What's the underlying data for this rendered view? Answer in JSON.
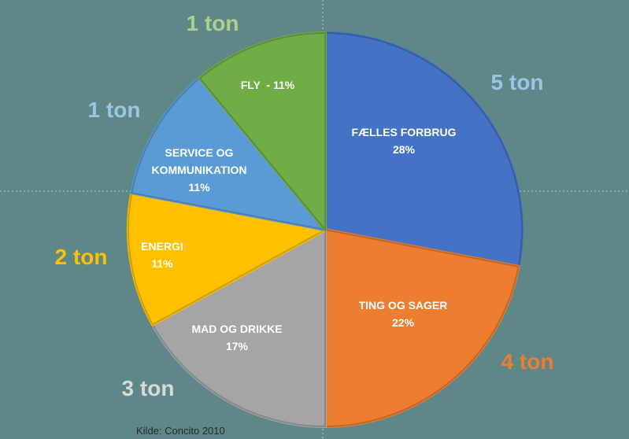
{
  "chart_data": {
    "type": "pie",
    "categories": [
      "FÆLLES FORBRUG",
      "TING OG SAGER",
      "MAD OG DRIKKE",
      "ENERGI",
      "SERVICE OG KOMMUNIKATION",
      null
    ],
    "values": [
      28,
      22,
      17,
      11,
      11,
      11
    ],
    "value_labels": [
      "28%",
      "22%",
      "17%",
      "11%",
      "11%",
      "FLY  - 11%"
    ],
    "colors": [
      "#4472c4",
      "#ed7d31",
      "#a5a5a5",
      "#ffc000",
      "#5b9bd5",
      "#70ad47"
    ],
    "outer_labels": [
      "5 ton",
      "4 ton",
      "3 ton",
      "2 ton",
      "1 ton",
      "1 ton"
    ],
    "outer_label_colors": [
      "#9dc3e6",
      "#ed7d31",
      "#d9d9d9",
      "#ffc000",
      "#9dc3e6",
      "#a9d18e"
    ],
    "source": "Kilde: Concito 2010"
  }
}
